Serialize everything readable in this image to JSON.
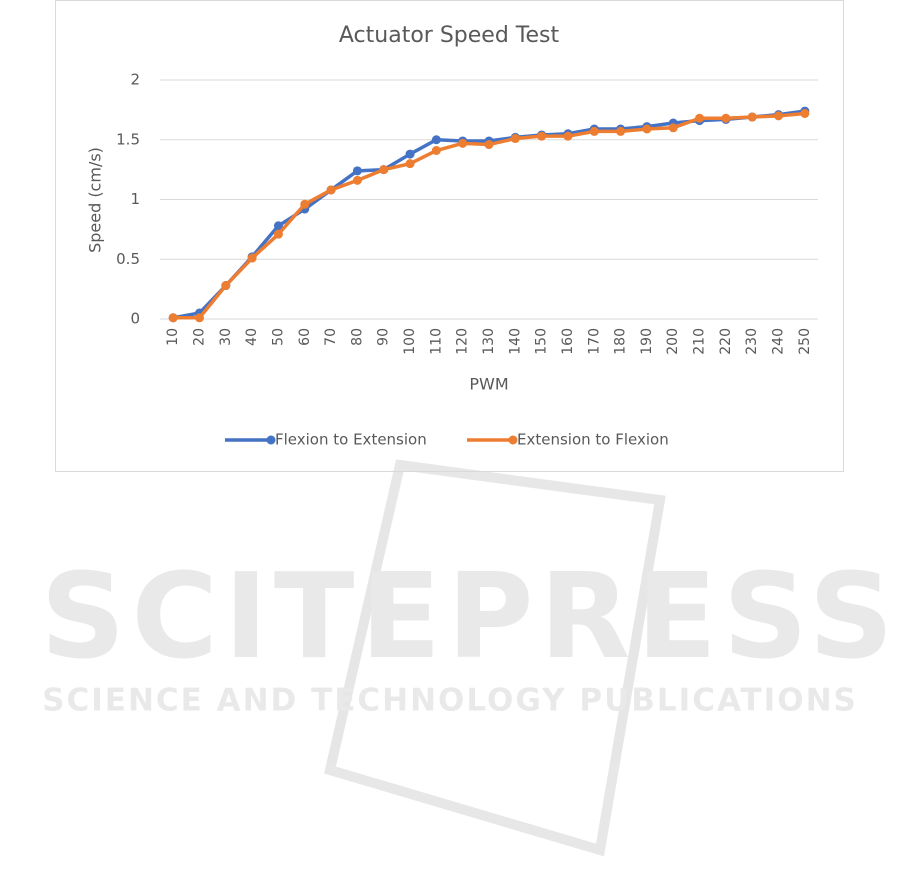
{
  "chart_data": {
    "type": "line",
    "title": "Actuator Speed Test",
    "x_label": "PWM",
    "y_label": "Speed (cm/s)",
    "categories": [
      "10",
      "20",
      "30",
      "40",
      "50",
      "60",
      "70",
      "80",
      "90",
      "100",
      "110",
      "120",
      "130",
      "140",
      "150",
      "160",
      "170",
      "180",
      "190",
      "200",
      "210",
      "220",
      "230",
      "240",
      "250"
    ],
    "series": [
      {
        "name": "Flexion to Extension",
        "color": "#4472c4",
        "values": [
          0.01,
          0.05,
          0.28,
          0.52,
          0.78,
          0.92,
          1.08,
          1.24,
          1.25,
          1.38,
          1.5,
          1.49,
          1.49,
          1.52,
          1.54,
          1.55,
          1.59,
          1.59,
          1.61,
          1.64,
          1.66,
          1.67,
          1.69,
          1.71,
          1.74
        ]
      },
      {
        "name": "Extension to Flexion",
        "color": "#ed7d31",
        "values": [
          0.01,
          0.01,
          0.28,
          0.51,
          0.71,
          0.96,
          1.08,
          1.16,
          1.25,
          1.3,
          1.41,
          1.47,
          1.46,
          1.51,
          1.53,
          1.53,
          1.57,
          1.57,
          1.59,
          1.6,
          1.68,
          1.68,
          1.69,
          1.7,
          1.72
        ]
      }
    ],
    "ylim": [
      0,
      2
    ],
    "yticks": [
      0,
      0.5,
      1,
      1.5,
      2
    ],
    "grid": true,
    "legend": "bottom"
  },
  "watermark": {
    "title": "SCITEPRESS",
    "subtitle": "SCIENCE AND TECHNOLOGY PUBLICATIONS"
  }
}
